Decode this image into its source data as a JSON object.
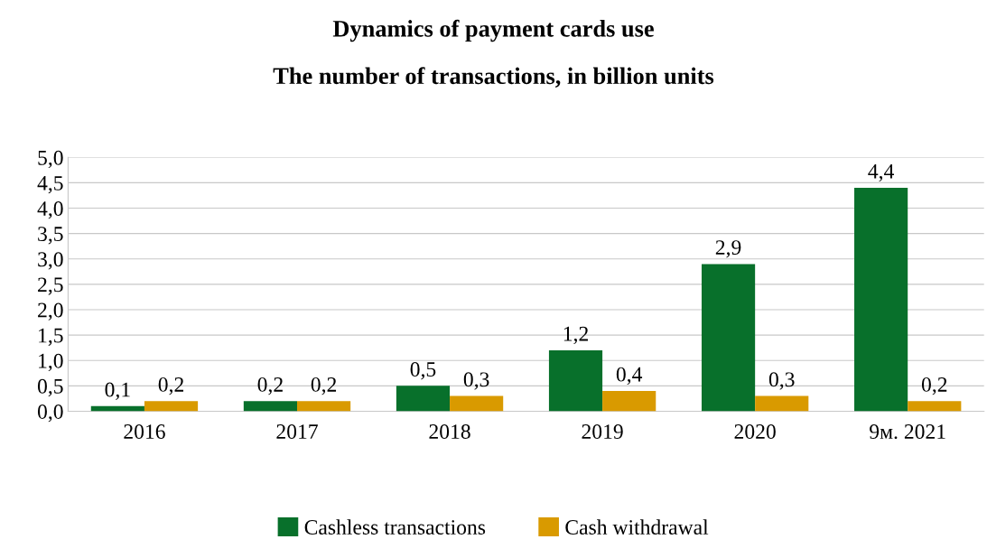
{
  "chart_data": {
    "type": "bar",
    "title": "Dynamics of payment cards use",
    "subtitle": "The number of transactions, in billion units",
    "categories": [
      "2016",
      "2017",
      "2018",
      "2019",
      "2020",
      "9м. 2021"
    ],
    "series": [
      {
        "name": "Cashless transactions",
        "color": "#08702b",
        "values": [
          0.1,
          0.2,
          0.5,
          1.2,
          2.9,
          4.4
        ],
        "value_labels": [
          "0,1",
          "0,2",
          "0,5",
          "1,2",
          "2,9",
          "4,4"
        ]
      },
      {
        "name": "Cash withdrawal",
        "color": "#d99a00",
        "values": [
          0.2,
          0.2,
          0.3,
          0.4,
          0.3,
          0.2
        ],
        "value_labels": [
          "0,2",
          "0,2",
          "0,3",
          "0,4",
          "0,3",
          "0,2"
        ]
      }
    ],
    "ylim": [
      0,
      5
    ],
    "yticks": [
      {
        "value": 0,
        "label": "0,0"
      },
      {
        "value": 0.5,
        "label": "0,5"
      },
      {
        "value": 1,
        "label": "1,0"
      },
      {
        "value": 1.5,
        "label": "1,5"
      },
      {
        "value": 2,
        "label": "2,0"
      },
      {
        "value": 2.5,
        "label": "2,5"
      },
      {
        "value": 3,
        "label": "3,0"
      },
      {
        "value": 3.5,
        "label": "3,5"
      },
      {
        "value": 4,
        "label": "4,0"
      },
      {
        "value": 4.5,
        "label": "4,5"
      },
      {
        "value": 5,
        "label": "5,0"
      }
    ],
    "grid": "y",
    "legend": "bottom"
  }
}
